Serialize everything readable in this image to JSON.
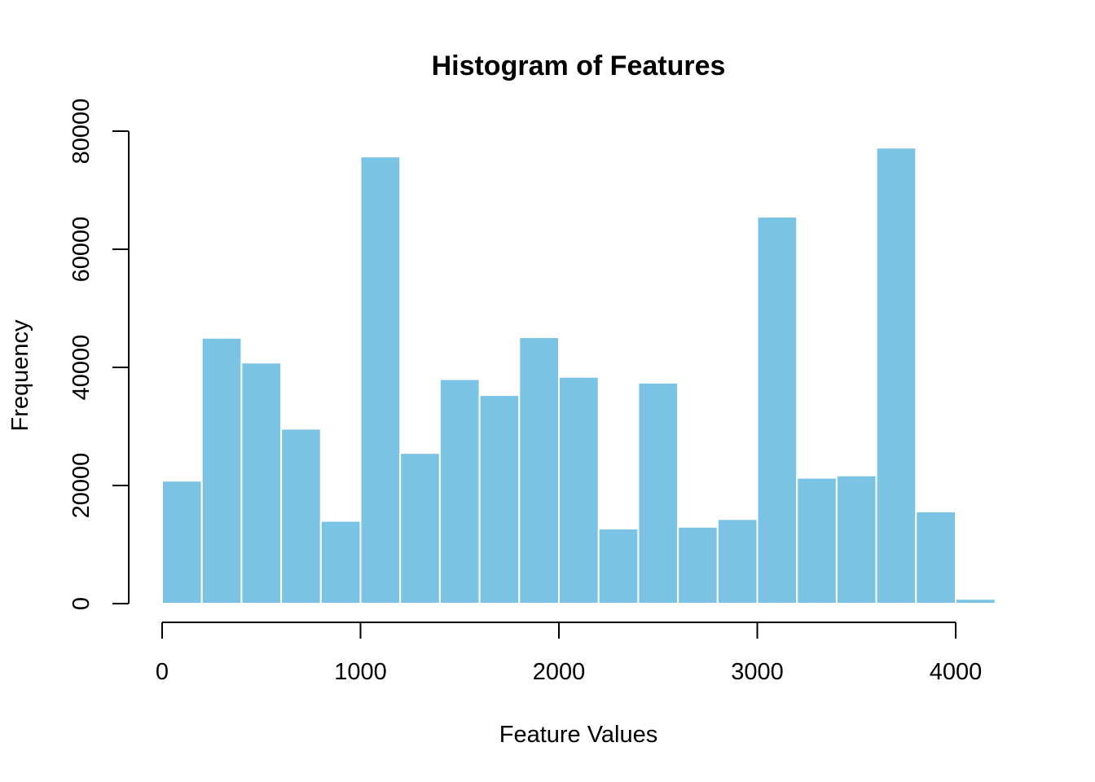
{
  "chart_data": {
    "type": "bar",
    "title": "Histogram of Features",
    "xlabel": "Feature Values",
    "ylabel": "Frequency",
    "bin_width": 200,
    "bins": [
      {
        "x0": 0,
        "x1": 200,
        "count": 20800
      },
      {
        "x0": 200,
        "x1": 400,
        "count": 45000
      },
      {
        "x0": 400,
        "x1": 600,
        "count": 40800
      },
      {
        "x0": 600,
        "x1": 800,
        "count": 29600
      },
      {
        "x0": 800,
        "x1": 1000,
        "count": 14000
      },
      {
        "x0": 1000,
        "x1": 1200,
        "count": 75700
      },
      {
        "x0": 1200,
        "x1": 1400,
        "count": 25500
      },
      {
        "x0": 1400,
        "x1": 1600,
        "count": 38000
      },
      {
        "x0": 1600,
        "x1": 1800,
        "count": 35300
      },
      {
        "x0": 1800,
        "x1": 2000,
        "count": 45100
      },
      {
        "x0": 2000,
        "x1": 2200,
        "count": 38400
      },
      {
        "x0": 2200,
        "x1": 2400,
        "count": 12700
      },
      {
        "x0": 2400,
        "x1": 2600,
        "count": 37400
      },
      {
        "x0": 2600,
        "x1": 2800,
        "count": 13000
      },
      {
        "x0": 2800,
        "x1": 3000,
        "count": 14300
      },
      {
        "x0": 3000,
        "x1": 3200,
        "count": 65500
      },
      {
        "x0": 3200,
        "x1": 3400,
        "count": 21300
      },
      {
        "x0": 3400,
        "x1": 3600,
        "count": 21700
      },
      {
        "x0": 3600,
        "x1": 3800,
        "count": 77200
      },
      {
        "x0": 3800,
        "x1": 4000,
        "count": 15600
      },
      {
        "x0": 4000,
        "x1": 4200,
        "count": 800
      }
    ],
    "xlim": [
      0,
      4200
    ],
    "ylim": [
      0,
      80000
    ],
    "xticks": [
      0,
      1000,
      2000,
      3000,
      4000
    ],
    "xtick_labels": [
      "0",
      "1000",
      "2000",
      "3000",
      "4000"
    ],
    "yticks": [
      0,
      20000,
      40000,
      60000,
      80000
    ],
    "ytick_labels": [
      "0",
      "20000",
      "40000",
      "60000",
      "80000"
    ],
    "bar_color": "#7AC3E5",
    "bar_border_color": "#FFFFFF",
    "grid": false,
    "legend": "none"
  }
}
